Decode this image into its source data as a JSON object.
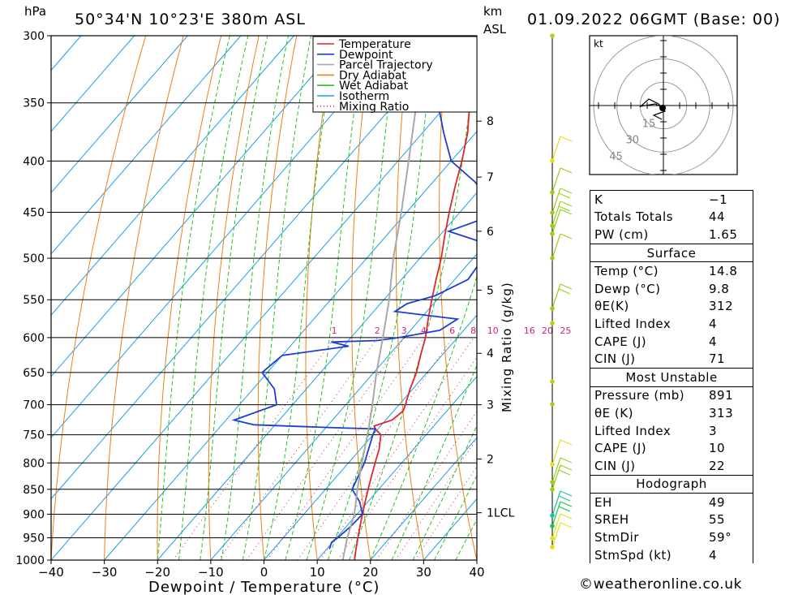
{
  "header": {
    "hpa_label": "hPa",
    "location": "50°34'N  10°23'E  380m  ASL",
    "km_label": "km",
    "asl_label": "ASL",
    "datetime": "01.09.2022  06GMT  (Base: 00)"
  },
  "legend": [
    {
      "name": "Temperature",
      "color": "#e0262b"
    },
    {
      "name": "Dewpoint",
      "color": "#1c3fd0"
    },
    {
      "name": "Parcel Trajectory",
      "color": "#a8a8a8"
    },
    {
      "name": "Dry Adiabat",
      "color": "#ee7f14"
    },
    {
      "name": "Wet Adiabat",
      "color": "#24c41e"
    },
    {
      "name": "Isotherm",
      "color": "#1aa0e6"
    },
    {
      "name": "Mixing Ratio",
      "color": "#d0217f"
    }
  ],
  "axes": {
    "xlabel": "Dewpoint / Temperature (°C)",
    "right_label": "Mixing Ratio (g/kg)",
    "pressure_ticks": [
      "300",
      "350",
      "400",
      "450",
      "500",
      "550",
      "600",
      "650",
      "700",
      "750",
      "800",
      "850",
      "900",
      "950",
      "1000"
    ],
    "temp_ticks": [
      "−40",
      "−30",
      "−20",
      "−10",
      "0",
      "10",
      "20",
      "30",
      "40"
    ],
    "km_ticks": [
      "8",
      "7",
      "6",
      "5",
      "4",
      "3",
      "2",
      "1LCL"
    ],
    "mixing_ticks": [
      "1",
      "2",
      "3",
      "4",
      "6",
      "8",
      "10",
      "16",
      "20",
      "25"
    ]
  },
  "hodograph": {
    "unit_label": "kt",
    "ring_labels": [
      "15",
      "30",
      "45"
    ]
  },
  "indices": [
    {
      "key": "K",
      "value": "−1"
    },
    {
      "key": "Totals Totals",
      "value": "44"
    },
    {
      "key": "PW (cm)",
      "value": "1.65"
    }
  ],
  "surface": {
    "title": "Surface",
    "rows": [
      {
        "key": "Temp (°C)",
        "value": "14.8"
      },
      {
        "key": "Dewp (°C)",
        "value": "9.8"
      },
      {
        "key": "θE(K)",
        "value": "312"
      },
      {
        "key": "Lifted Index",
        "value": "4"
      },
      {
        "key": "CAPE (J)",
        "value": "4"
      },
      {
        "key": "CIN (J)",
        "value": "71"
      }
    ]
  },
  "most_unstable": {
    "title": "Most Unstable",
    "rows": [
      {
        "key": "Pressure (mb)",
        "value": "891"
      },
      {
        "key": "θE (K)",
        "value": "313"
      },
      {
        "key": "Lifted Index",
        "value": "3"
      },
      {
        "key": "CAPE (J)",
        "value": "10"
      },
      {
        "key": "CIN (J)",
        "value": "22"
      }
    ]
  },
  "hodograph_table": {
    "title": "Hodograph",
    "rows": [
      {
        "key": "EH",
        "value": "49"
      },
      {
        "key": "SREH",
        "value": "55"
      },
      {
        "key": "StmDir",
        "value": "59°"
      },
      {
        "key": "StmSpd (kt)",
        "value": "4"
      }
    ]
  },
  "copyright": "©weatheronline.co.uk",
  "chart_data": {
    "type": "line",
    "title": "50°34'N  10°23'E  380m  ASL",
    "xlabel": "Dewpoint / Temperature (°C)",
    "ylabel": "hPa",
    "xlim": [
      -40,
      40
    ],
    "ylim": [
      1000,
      300
    ],
    "yscale": "log",
    "skew": true,
    "series": [
      {
        "name": "Temperature",
        "points": [
          [
            1000,
            17
          ],
          [
            975,
            15.5
          ],
          [
            950,
            14
          ],
          [
            925,
            12.5
          ],
          [
            900,
            11
          ],
          [
            875,
            9.5
          ],
          [
            850,
            8
          ],
          [
            825,
            6.5
          ],
          [
            800,
            5
          ],
          [
            775,
            3.5
          ],
          [
            750,
            1.5
          ],
          [
            740,
            -0.5
          ],
          [
            735,
            -1.2
          ],
          [
            725,
            1.2
          ],
          [
            710,
            1.8
          ],
          [
            700,
            1.2
          ],
          [
            675,
            -0.5
          ],
          [
            650,
            -2
          ],
          [
            625,
            -4
          ],
          [
            600,
            -6
          ],
          [
            575,
            -8.5
          ],
          [
            550,
            -11
          ],
          [
            525,
            -13.5
          ],
          [
            500,
            -16
          ],
          [
            475,
            -19
          ],
          [
            450,
            -22
          ],
          [
            425,
            -25
          ],
          [
            400,
            -28
          ],
          [
            375,
            -31.5
          ],
          [
            350,
            -36
          ],
          [
            325,
            -41
          ],
          [
            300,
            -46
          ]
        ]
      },
      {
        "name": "Dewpoint",
        "points": [
          [
            975,
            10.5
          ],
          [
            960,
            9.8
          ],
          [
            950,
            10.2
          ],
          [
            925,
            10.8
          ],
          [
            900,
            11
          ],
          [
            875,
            8.5
          ],
          [
            850,
            5
          ],
          [
            800,
            3
          ],
          [
            750,
            0
          ],
          [
            740,
            -0.5
          ],
          [
            738,
            -8
          ],
          [
            733,
            -24
          ],
          [
            725,
            -28.5
          ],
          [
            700,
            -23
          ],
          [
            675,
            -26
          ],
          [
            650,
            -31
          ],
          [
            625,
            -30
          ],
          [
            612,
            -19
          ],
          [
            606,
            -23
          ],
          [
            604,
            -14.5
          ],
          [
            600,
            -11
          ],
          [
            590,
            -4.5
          ],
          [
            575,
            -3
          ],
          [
            565,
            -16
          ],
          [
            555,
            -15
          ],
          [
            545,
            -11
          ],
          [
            525,
            -7.5
          ],
          [
            505,
            -8
          ],
          [
            485,
            -9
          ],
          [
            470,
            -19
          ],
          [
            455,
            -14
          ],
          [
            440,
            -16
          ],
          [
            420,
            -22
          ],
          [
            400,
            -30
          ],
          [
            375,
            -36
          ],
          [
            350,
            -42
          ],
          [
            325,
            -44
          ],
          [
            300,
            -48
          ]
        ]
      },
      {
        "name": "Parcel Trajectory",
        "points": [
          [
            1000,
            14.8
          ],
          [
            950,
            12
          ],
          [
            900,
            9.5
          ],
          [
            850,
            6
          ],
          [
            800,
            2.5
          ],
          [
            750,
            -1
          ],
          [
            700,
            -5
          ],
          [
            650,
            -9.5
          ],
          [
            600,
            -14
          ],
          [
            550,
            -19
          ],
          [
            500,
            -25
          ],
          [
            450,
            -31
          ],
          [
            400,
            -38
          ],
          [
            350,
            -46
          ],
          [
            300,
            -55
          ]
        ]
      }
    ],
    "mixing_ratio_gkg": [
      1,
      2,
      3,
      4,
      6,
      8,
      10,
      16,
      20,
      25
    ],
    "hodograph": {
      "max_ring_kt": 45,
      "rings_kt": [
        15,
        30,
        45
      ],
      "storm_dir_deg": 59,
      "storm_speed_kt": 4
    }
  }
}
